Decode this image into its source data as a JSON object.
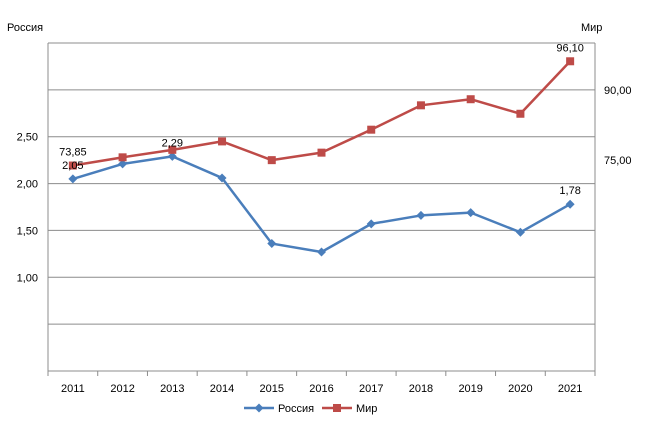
{
  "chart_data": {
    "type": "line",
    "title": "",
    "left_axis_title": "Россия",
    "right_axis_title": "Мир",
    "x": [
      "2011",
      "2012",
      "2013",
      "2014",
      "2015",
      "2016",
      "2017",
      "2018",
      "2019",
      "2020",
      "2021"
    ],
    "left_ylim": [
      0,
      3.5
    ],
    "left_tick_labels": [
      "1,00",
      "1,50",
      "2,00",
      "2,50"
    ],
    "left_tick_values": [
      1.0,
      1.5,
      2.0,
      2.5
    ],
    "right_ylim": [
      30,
      100
    ],
    "right_tick_labels": [
      "75,00",
      "90,00"
    ],
    "right_tick_values": [
      75,
      90
    ],
    "grid": "horizontal",
    "legend_position": "bottom",
    "series": [
      {
        "name": "Россия",
        "axis": "left",
        "color": "#4a7ebb",
        "marker": "diamond",
        "values": [
          2.05,
          2.21,
          2.29,
          2.06,
          1.36,
          1.27,
          1.57,
          1.66,
          1.69,
          1.48,
          1.78
        ],
        "data_labels": [
          {
            "index": 0,
            "text": "2,05"
          },
          {
            "index": 2,
            "text": "2,29"
          },
          {
            "index": 10,
            "text": "1,78"
          }
        ]
      },
      {
        "name": "Мир",
        "axis": "right",
        "color": "#be4b48",
        "marker": "square",
        "values": [
          73.85,
          75.6,
          77.2,
          79.0,
          75.0,
          76.6,
          81.5,
          86.7,
          88.0,
          84.9,
          96.1
        ],
        "data_labels": [
          {
            "index": 0,
            "text": "73,85"
          },
          {
            "index": 10,
            "text": "96,10"
          }
        ]
      }
    ]
  }
}
